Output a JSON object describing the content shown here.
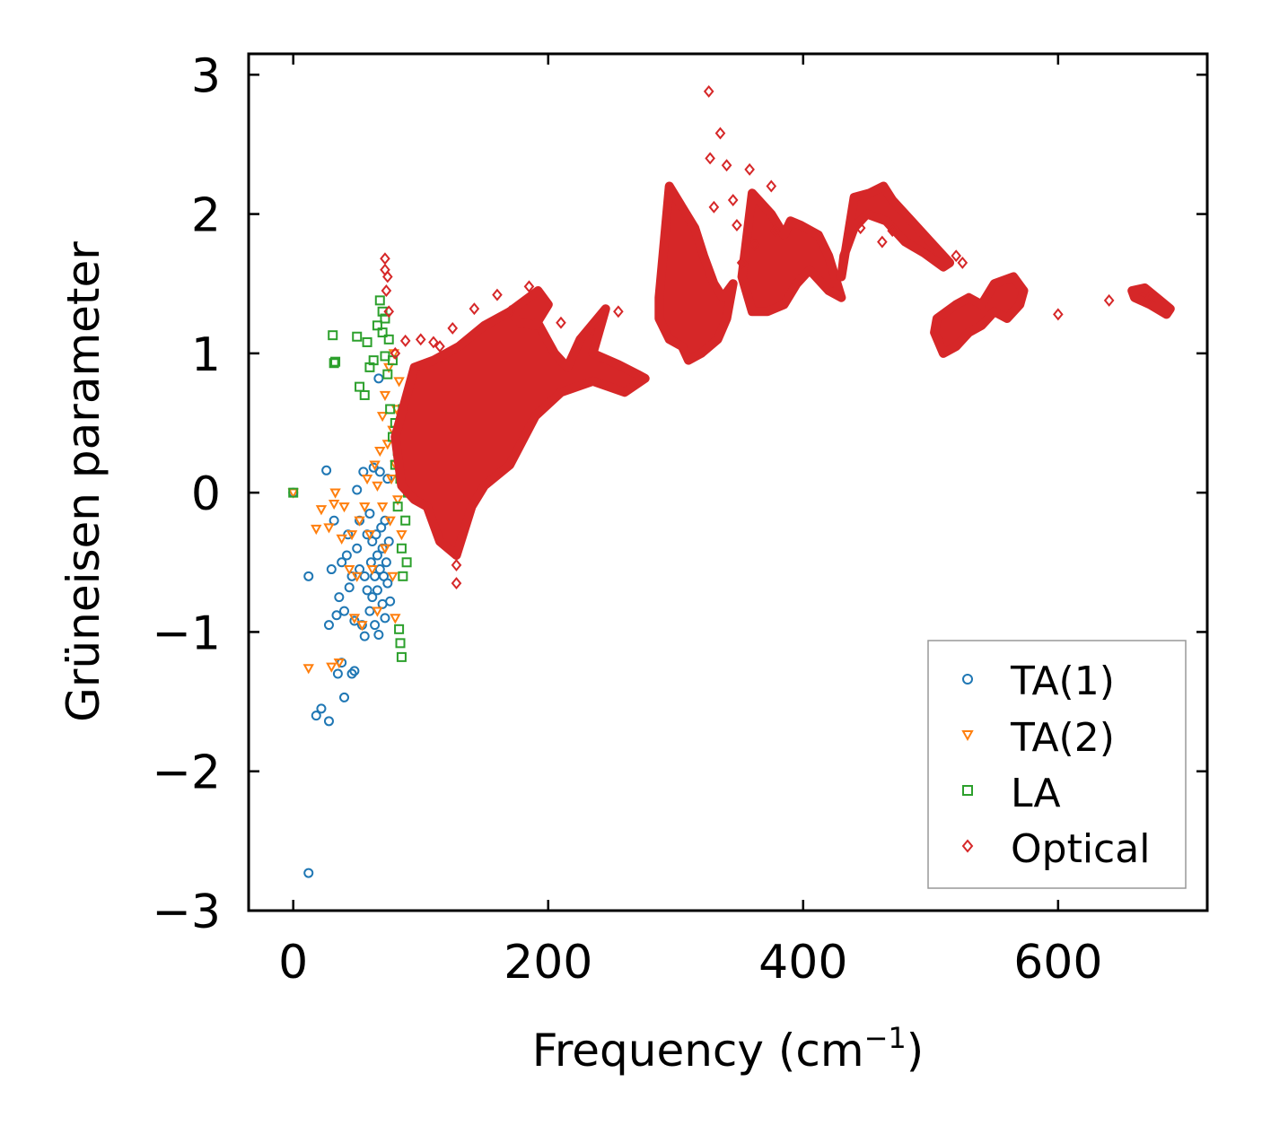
{
  "chart_data": {
    "type": "scatter",
    "xlabel": "Frequency (cm",
    "xlabel_superscript": "−1",
    "xlabel_suffix": ")",
    "ylabel": "Grüneisen parameter",
    "xlim": [
      -35,
      717
    ],
    "ylim": [
      -3.0,
      3.15
    ],
    "xticks": [
      0,
      200,
      400,
      600
    ],
    "xtick_labels": [
      "0",
      "200",
      "400",
      "600"
    ],
    "yticks": [
      3,
      2,
      1,
      0,
      -1,
      -2,
      -3
    ],
    "ytick_labels": [
      "3",
      "2",
      "1",
      "0",
      "−1",
      "−2",
      "−3"
    ],
    "grid": false,
    "legend_position": "bottom-right",
    "series": [
      {
        "name": "TA(1)",
        "marker": "circle",
        "color": "#1f77b4",
        "points": [
          [
            0,
            0
          ],
          [
            12,
            -2.73
          ],
          [
            12,
            -0.6
          ],
          [
            18,
            -1.6
          ],
          [
            22,
            -1.55
          ],
          [
            26,
            0.16
          ],
          [
            28,
            -1.64
          ],
          [
            28,
            -0.95
          ],
          [
            30,
            -0.55
          ],
          [
            32,
            -0.2
          ],
          [
            34,
            -0.88
          ],
          [
            35,
            -1.3
          ],
          [
            36,
            -0.75
          ],
          [
            38,
            -0.5
          ],
          [
            38,
            -1.22
          ],
          [
            40,
            -1.47
          ],
          [
            40,
            -0.85
          ],
          [
            42,
            -0.45
          ],
          [
            43,
            -0.3
          ],
          [
            44,
            -0.68
          ],
          [
            46,
            -0.6
          ],
          [
            46,
            -1.3
          ],
          [
            48,
            -1.28
          ],
          [
            48,
            -0.92
          ],
          [
            50,
            -0.4
          ],
          [
            50,
            0.02
          ],
          [
            52,
            -0.2
          ],
          [
            52,
            -0.55
          ],
          [
            54,
            -0.95
          ],
          [
            55,
            0.15
          ],
          [
            56,
            -0.6
          ],
          [
            56,
            -1.03
          ],
          [
            58,
            -0.3
          ],
          [
            58,
            -0.7
          ],
          [
            60,
            -0.15
          ],
          [
            60,
            -0.85
          ],
          [
            61,
            -0.5
          ],
          [
            62,
            -0.35
          ],
          [
            62,
            -0.75
          ],
          [
            63,
            0.18
          ],
          [
            64,
            -0.6
          ],
          [
            64,
            -0.95
          ],
          [
            65,
            -0.3
          ],
          [
            66,
            -0.45
          ],
          [
            66,
            -0.7
          ],
          [
            67,
            -1.02
          ],
          [
            68,
            -0.55
          ],
          [
            68,
            0.15
          ],
          [
            69,
            -0.25
          ],
          [
            70,
            -0.4
          ],
          [
            70,
            -0.8
          ],
          [
            71,
            -0.6
          ],
          [
            72,
            -0.2
          ],
          [
            72,
            -0.9
          ],
          [
            73,
            -0.5
          ],
          [
            74,
            0.1
          ],
          [
            74,
            -0.65
          ],
          [
            75,
            -0.35
          ],
          [
            76,
            -0.78
          ],
          [
            67,
            0.82
          ]
        ]
      },
      {
        "name": "TA(2)",
        "marker": "triangle",
        "color": "#ff7f0e",
        "points": [
          [
            0,
            0
          ],
          [
            12,
            -1.26
          ],
          [
            18,
            -0.26
          ],
          [
            22,
            -0.12
          ],
          [
            28,
            -0.25
          ],
          [
            30,
            -1.25
          ],
          [
            32,
            -0.08
          ],
          [
            33,
            0
          ],
          [
            36,
            -1.22
          ],
          [
            38,
            -0.33
          ],
          [
            40,
            -0.1
          ],
          [
            44,
            -0.55
          ],
          [
            46,
            -0.3
          ],
          [
            48,
            -0.9
          ],
          [
            50,
            -0.6
          ],
          [
            52,
            -0.2
          ],
          [
            54,
            -0.95
          ],
          [
            56,
            -0.1
          ],
          [
            58,
            0.1
          ],
          [
            60,
            -0.3
          ],
          [
            62,
            -0.55
          ],
          [
            64,
            0.2
          ],
          [
            66,
            0.05
          ],
          [
            66,
            -0.85
          ],
          [
            68,
            0.3
          ],
          [
            70,
            0.55
          ],
          [
            70,
            -0.1
          ],
          [
            72,
            0.7
          ],
          [
            72,
            -0.4
          ],
          [
            74,
            0.35
          ],
          [
            75,
            0.9
          ],
          [
            76,
            -0.2
          ],
          [
            77,
            0.1
          ],
          [
            78,
            -0.6
          ],
          [
            78,
            0.45
          ],
          [
            79,
            1.0
          ],
          [
            80,
            0.2
          ],
          [
            80,
            -0.9
          ],
          [
            81,
            0.6
          ],
          [
            82,
            -0.05
          ],
          [
            83,
            0.8
          ],
          [
            84,
            0.3
          ],
          [
            85,
            -0.3
          ],
          [
            86,
            0.5
          ],
          [
            88,
            0.1
          ]
        ]
      },
      {
        "name": "LA",
        "marker": "square",
        "color": "#2ca02c",
        "points": [
          [
            0,
            0
          ],
          [
            31,
            1.13
          ],
          [
            32,
            0.93
          ],
          [
            33,
            0.94
          ],
          [
            50,
            1.12
          ],
          [
            52,
            0.76
          ],
          [
            56,
            0.7
          ],
          [
            58,
            1.08
          ],
          [
            60,
            0.9
          ],
          [
            63,
            0.95
          ],
          [
            66,
            1.2
          ],
          [
            68,
            1.38
          ],
          [
            70,
            1.3
          ],
          [
            70,
            1.15
          ],
          [
            72,
            0.98
          ],
          [
            72,
            1.25
          ],
          [
            74,
            0.85
          ],
          [
            75,
            1.1
          ],
          [
            76,
            0.6
          ],
          [
            78,
            0.4
          ],
          [
            78,
            0.95
          ],
          [
            80,
            0.2
          ],
          [
            80,
            0.5
          ],
          [
            82,
            -0.1
          ],
          [
            82,
            0.3
          ],
          [
            83,
            -0.98
          ],
          [
            84,
            -1.08
          ],
          [
            85,
            -1.18
          ],
          [
            84,
            0.1
          ],
          [
            85,
            -0.4
          ],
          [
            86,
            0.6
          ],
          [
            86,
            -0.6
          ],
          [
            87,
            0.2
          ],
          [
            88,
            -0.2
          ],
          [
            88,
            0.4
          ],
          [
            89,
            -0.5
          ],
          [
            90,
            0.0
          ],
          [
            90,
            0.25
          ],
          [
            91,
            0.1
          ]
        ]
      },
      {
        "name": "Optical",
        "marker": "diamond",
        "color": "#d62728",
        "points": [
          [
            72,
            1.6
          ],
          [
            72,
            1.68
          ],
          [
            73,
            1.45
          ],
          [
            74,
            1.55
          ],
          [
            75,
            1.3
          ],
          [
            80,
            1.0
          ],
          [
            88,
            1.09
          ],
          [
            100,
            1.1
          ],
          [
            110,
            1.08
          ],
          [
            115,
            1.05
          ],
          [
            125,
            1.18
          ],
          [
            128,
            -0.65
          ],
          [
            128,
            -0.52
          ],
          [
            142,
            1.32
          ],
          [
            160,
            1.42
          ],
          [
            170,
            1.3
          ],
          [
            185,
            1.48
          ],
          [
            210,
            1.22
          ],
          [
            255,
            1.3
          ],
          [
            326,
            2.88
          ],
          [
            327,
            2.4
          ],
          [
            330,
            2.05
          ],
          [
            335,
            2.58
          ],
          [
            340,
            2.35
          ],
          [
            345,
            2.1
          ],
          [
            348,
            1.92
          ],
          [
            352,
            1.65
          ],
          [
            358,
            2.32
          ],
          [
            362,
            1.78
          ],
          [
            375,
            2.2
          ],
          [
            378,
            1.88
          ],
          [
            445,
            1.9
          ],
          [
            462,
            1.8
          ],
          [
            470,
            1.88
          ],
          [
            520,
            1.7
          ],
          [
            525,
            1.65
          ],
          [
            600,
            1.28
          ],
          [
            640,
            1.38
          ],
          [
            672,
            1.4
          ]
        ],
        "regions": [
          [
            [
              80,
              0.4
            ],
            [
              95,
              0.9
            ],
            [
              110,
              0.95
            ],
            [
              130,
              1.05
            ],
            [
              150,
              1.2
            ],
            [
              170,
              1.3
            ],
            [
              190,
              1.25
            ],
            [
              205,
              1.0
            ],
            [
              215,
              0.9
            ],
            [
              225,
              1.1
            ],
            [
              245,
              1.32
            ],
            [
              235,
              1.0
            ],
            [
              255,
              0.92
            ],
            [
              270,
              0.85
            ],
            [
              276,
              0.82
            ],
            [
              260,
              0.72
            ],
            [
              235,
              0.8
            ],
            [
              210,
              0.72
            ],
            [
              190,
              0.55
            ],
            [
              170,
              0.2
            ],
            [
              150,
              0.05
            ],
            [
              140,
              -0.1
            ],
            [
              128,
              -0.45
            ],
            [
              115,
              -0.35
            ],
            [
              105,
              -0.1
            ],
            [
              95,
              -0.05
            ],
            [
              85,
              0.05
            ]
          ],
          [
            [
              170,
              1.3
            ],
            [
              192,
              1.45
            ],
            [
              200,
              1.35
            ],
            [
              190,
              1.2
            ],
            [
              178,
              1.22
            ]
          ],
          [
            [
              287,
              1.4
            ],
            [
              295,
              2.2
            ],
            [
              305,
              2.05
            ],
            [
              315,
              1.9
            ],
            [
              322,
              1.7
            ],
            [
              330,
              1.5
            ],
            [
              337,
              1.4
            ],
            [
              345,
              1.5
            ],
            [
              340,
              1.25
            ],
            [
              333,
              1.1
            ],
            [
              320,
              1.0
            ],
            [
              310,
              0.95
            ],
            [
              305,
              1.05
            ],
            [
              295,
              1.1
            ],
            [
              287,
              1.25
            ]
          ],
          [
            [
              352,
              1.55
            ],
            [
              360,
              2.15
            ],
            [
              375,
              2.0
            ],
            [
              385,
              1.85
            ],
            [
              390,
              1.95
            ],
            [
              398,
              1.92
            ],
            [
              412,
              1.85
            ],
            [
              420,
              1.7
            ],
            [
              425,
              1.55
            ],
            [
              430,
              1.4
            ],
            [
              420,
              1.45
            ],
            [
              405,
              1.6
            ],
            [
              395,
              1.5
            ],
            [
              385,
              1.35
            ],
            [
              372,
              1.3
            ],
            [
              360,
              1.3
            ]
          ],
          [
            [
              430,
              1.55
            ],
            [
              440,
              2.12
            ],
            [
              452,
              2.15
            ],
            [
              463,
              2.2
            ],
            [
              470,
              2.1
            ],
            [
              485,
              1.95
            ],
            [
              500,
              1.8
            ],
            [
              515,
              1.65
            ],
            [
              510,
              1.62
            ],
            [
              495,
              1.72
            ],
            [
              480,
              1.8
            ],
            [
              465,
              1.95
            ],
            [
              450,
              2.0
            ],
            [
              440,
              1.9
            ],
            [
              432,
              1.7
            ]
          ],
          [
            [
              505,
              1.25
            ],
            [
              520,
              1.35
            ],
            [
              530,
              1.4
            ],
            [
              540,
              1.35
            ],
            [
              550,
              1.5
            ],
            [
              565,
              1.55
            ],
            [
              573,
              1.45
            ],
            [
              570,
              1.35
            ],
            [
              560,
              1.25
            ],
            [
              550,
              1.3
            ],
            [
              540,
              1.2
            ],
            [
              530,
              1.15
            ],
            [
              520,
              1.05
            ],
            [
              510,
              1.0
            ],
            [
              503,
              1.15
            ]
          ],
          [
            [
              658,
              1.45
            ],
            [
              668,
              1.47
            ],
            [
              680,
              1.38
            ],
            [
              688,
              1.32
            ],
            [
              685,
              1.28
            ],
            [
              672,
              1.35
            ],
            [
              660,
              1.4
            ]
          ]
        ]
      }
    ]
  }
}
